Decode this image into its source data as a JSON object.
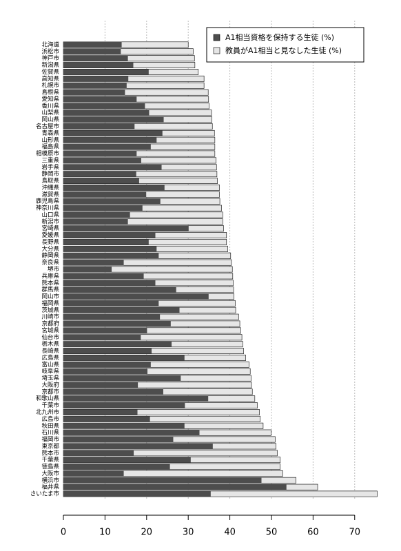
{
  "chart_data": {
    "type": "overlap-barh",
    "categories": [
      "北海道",
      "浜松市",
      "神戸市",
      "新潟県",
      "佐賀県",
      "高知県",
      "札幌市",
      "島根県",
      "愛知県",
      "香川県",
      "山梨県",
      "岡山県",
      "名古屋市",
      "青森県",
      "山形県",
      "福島県",
      "相模原市",
      "三重県",
      "岩手県",
      "静岡市",
      "鳥取県",
      "沖縄県",
      "滋賀県",
      "鹿児島県",
      "神奈川県",
      "山口県",
      "新潟市",
      "宮崎県",
      "愛媛県",
      "長野県",
      "大分県",
      "静岡県",
      "奈良県",
      "堺市",
      "兵庫県",
      "熊本県",
      "群馬県",
      "岡山市",
      "福岡県",
      "茨城県",
      "川崎市",
      "京都府",
      "宮城県",
      "仙台市",
      "栃木県",
      "長崎県",
      "広島県",
      "富山県",
      "岐阜県",
      "埼玉県",
      "大阪府",
      "京都市",
      "和歌山県",
      "千葉市",
      "北九州市",
      "広島市",
      "秋田県",
      "石川県",
      "福岡市",
      "東京都",
      "熊本市",
      "千葉県",
      "徳島県",
      "大阪市",
      "横浜市",
      "福井県",
      "さいたま市"
    ],
    "series": [
      {
        "name": "A1相当資格を保持する生徒 (%)",
        "color": "#4d4d4d",
        "values": [
          14,
          13.8,
          15.5,
          16.8,
          20.5,
          15.6,
          15.2,
          14.8,
          17.6,
          19.6,
          20.6,
          24.1,
          17.1,
          23.8,
          22.4,
          21.0,
          17.6,
          18.7,
          23.6,
          17.5,
          18.2,
          24.3,
          19.9,
          23.3,
          19.0,
          16.0,
          15.5,
          30.1,
          22.1,
          20.5,
          22.4,
          22.9,
          14.5,
          11.6,
          19.3,
          22.1,
          27.1,
          34.9,
          22.9,
          27.9,
          23.2,
          25.8,
          20.1,
          18.6,
          26.0,
          21.2,
          29.1,
          21.0,
          20.2,
          28.2,
          17.9,
          24.0,
          34.8,
          29.2,
          17.8,
          20.8,
          29.1,
          32.7,
          26.4,
          35.9,
          16.9,
          30.6,
          25.6,
          14.5,
          47.6,
          53.6,
          35.4
        ]
      },
      {
        "name": "教員がA1相当と見なした生徒 (%)",
        "color": "#e6e6e6",
        "values": [
          30,
          31.2,
          31.5,
          31.6,
          32.4,
          33.8,
          33.8,
          34.8,
          34.9,
          35.0,
          35.6,
          35.7,
          35.8,
          36.3,
          36.4,
          36.4,
          36.4,
          36.7,
          36.8,
          36.9,
          37.0,
          37.5,
          37.5,
          37.6,
          38.0,
          38.3,
          38.3,
          38.5,
          39.2,
          39.2,
          39.5,
          40.2,
          40.4,
          40.6,
          40.7,
          40.8,
          40.9,
          41.0,
          41.3,
          41.4,
          42.1,
          42.4,
          42.6,
          42.9,
          43.1,
          43.3,
          43.8,
          44.6,
          44.9,
          45.1,
          45.2,
          45.4,
          46.0,
          46.6,
          47.1,
          47.3,
          48.0,
          49.9,
          50.9,
          51.1,
          51.4,
          52.1,
          52.1,
          52.7,
          55.9,
          61.1,
          75.4
        ]
      }
    ],
    "xlim": [
      0,
      75.5
    ],
    "xticks": [
      0,
      10,
      20,
      30,
      40,
      50,
      60,
      70
    ],
    "grid": true,
    "legend": "top-right"
  }
}
